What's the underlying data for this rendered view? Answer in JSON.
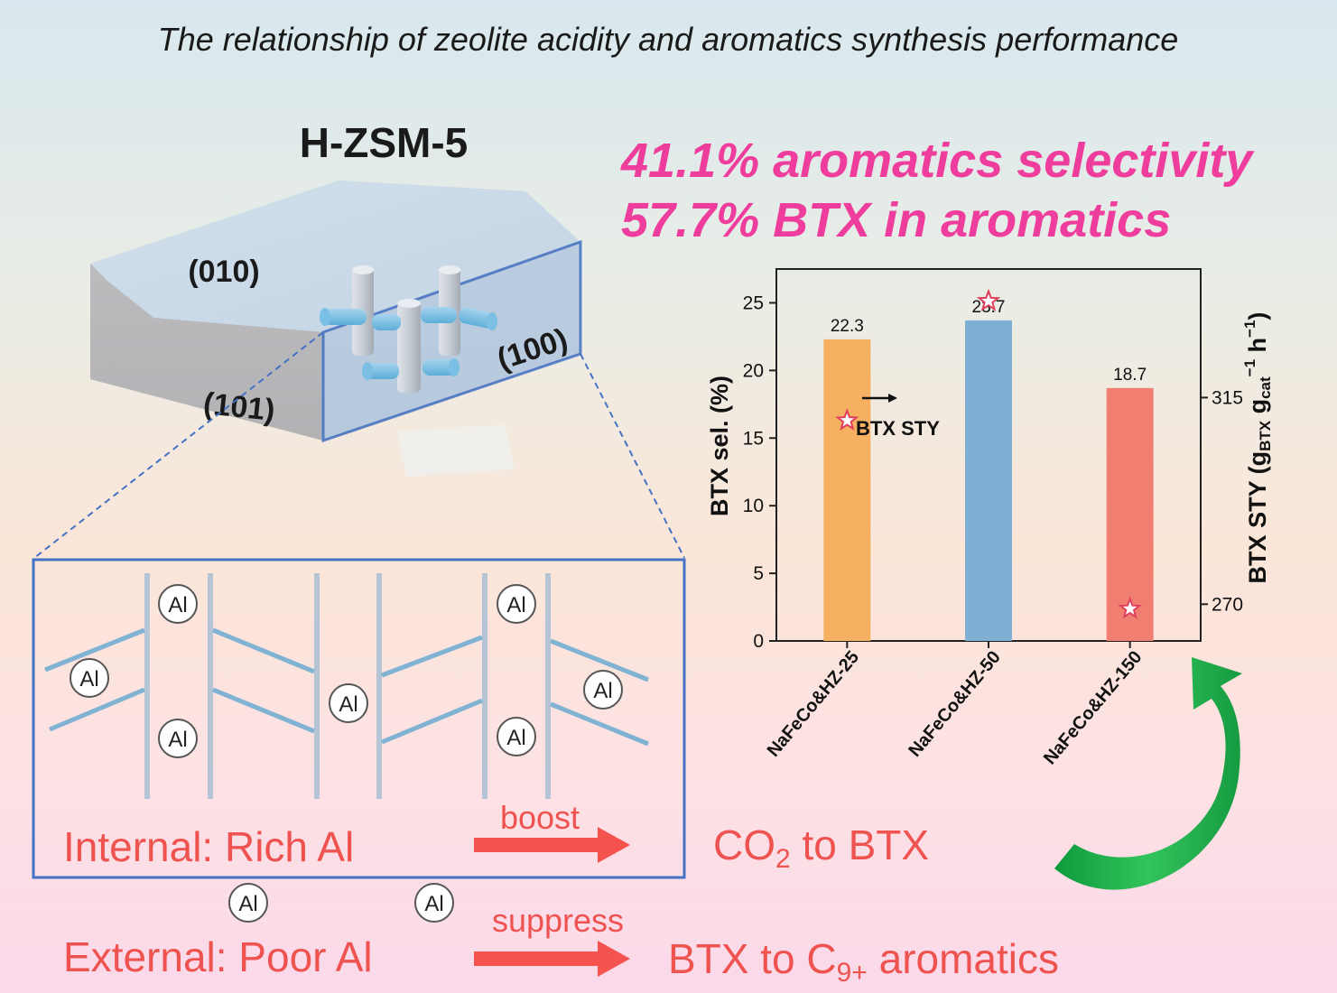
{
  "title": "The relationship of zeolite acidity and aromatics synthesis performance",
  "zeolite_label": "H-ZSM-5",
  "facets": {
    "f010": "(010)",
    "f101": "(101)",
    "f100": "(100)"
  },
  "highlights": {
    "line1": "41.1% aromatics selectivity",
    "line2": "57.7% BTX in aromatics"
  },
  "al_label": "Al",
  "internal": {
    "label": "Internal: Rich Al",
    "verb": "boost",
    "result_pre": "CO",
    "result_sub": "2",
    "result_post": " to BTX"
  },
  "external": {
    "label": "External: Poor Al",
    "verb": "suppress",
    "result_pre": "BTX to C",
    "result_sub": "9+",
    "result_post": " aromatics"
  },
  "colors": {
    "highlight": "#ee3d9c",
    "text_red": "#ef5350",
    "arrow_red": "#f4534e",
    "green_arrow": "#1fb14a",
    "frame_blue": "#4472c4",
    "channel": "#7fb2d3"
  },
  "chart_data": {
    "type": "bar",
    "categories": [
      "NaFeCo&HZ-25",
      "NaFeCo&HZ-50",
      "NaFeCo&HZ-150"
    ],
    "series": [
      {
        "values": [
          22.3,
          23.7,
          18.7
        ],
        "colors": [
          "#f5b062",
          "#7fb0d4",
          "#f07f72"
        ]
      },
      {
        "name": "BTX STY",
        "axis": "right",
        "marker": "star",
        "values": [
          310,
          336,
          269
        ]
      }
    ],
    "data_labels": [
      "22.3",
      "23.7",
      "18.7"
    ],
    "ylabel": "BTX sel. (%)",
    "ylabel_right": {
      "pre": "BTX STY (g",
      "sub1": "BTX",
      "mid": " g",
      "sub2": "cat",
      "sup1": "−1",
      "mid2": " h",
      "sup2": "−1",
      "post": ")"
    },
    "ylim": [
      0,
      27.5
    ],
    "yticks": [
      0,
      5,
      10,
      15,
      20,
      25
    ],
    "ylim_right": [
      262,
      343
    ],
    "yticks_right": [
      270,
      315
    ],
    "legend_text": "BTX STY"
  }
}
